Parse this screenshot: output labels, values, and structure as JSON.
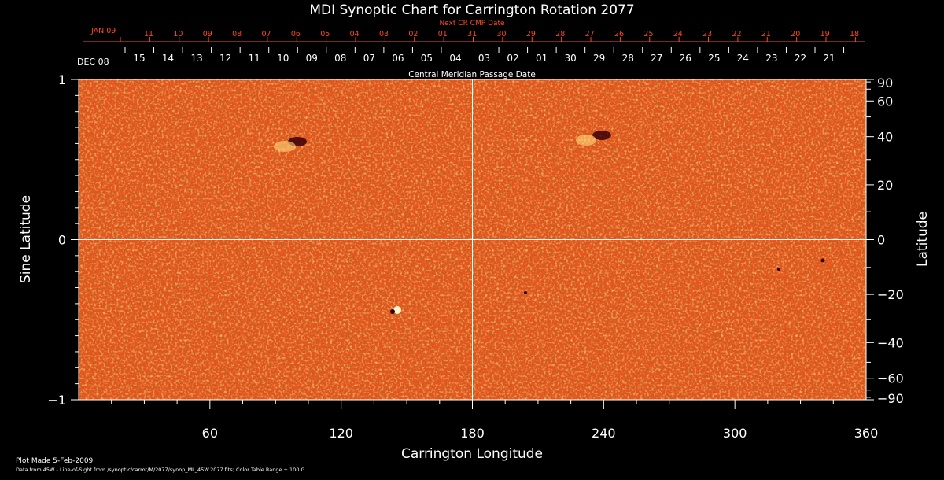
{
  "chart_data": {
    "type": "heatmap",
    "title": "MDI Synoptic Chart for Carrington Rotation 2077",
    "xlabel": "Carrington Longitude",
    "ylabel_left": "Sine Latitude",
    "ylabel_right": "Latitude",
    "xlim": [
      0,
      360
    ],
    "ylim": [
      -1,
      1
    ],
    "x_ticks": [
      60,
      120,
      180,
      240,
      300,
      360
    ],
    "left_ticks": [
      {
        "value": 1,
        "label": "1"
      },
      {
        "value": 0,
        "label": "0"
      },
      {
        "value": -1,
        "label": "−1"
      }
    ],
    "right_ticks": [
      90,
      60,
      40,
      20,
      0,
      -20,
      -40,
      -60,
      -90
    ],
    "next_cr_axis": {
      "title": "Next CR CMP Date",
      "start_label": "JAN 09",
      "dates": [
        "11",
        "10",
        "09",
        "08",
        "07",
        "06",
        "05",
        "04",
        "03",
        "02",
        "01",
        "31",
        "30",
        "29",
        "28",
        "27",
        "26",
        "25",
        "24",
        "23",
        "22",
        "21",
        "20",
        "19",
        "18"
      ]
    },
    "cmp_axis": {
      "title": "Central Meridian Passage Date",
      "start_label": "DEC 08",
      "dates": [
        "15",
        "14",
        "13",
        "12",
        "11",
        "10",
        "09",
        "08",
        "07",
        "06",
        "05",
        "04",
        "03",
        "02",
        "01",
        "30",
        "29",
        "28",
        "27",
        "26",
        "25",
        "24",
        "23",
        "22",
        "21"
      ]
    },
    "grid_lines": {
      "longitude": 180,
      "sine_latitude": 0
    },
    "colors": {
      "background": "#000000",
      "field": "#f2511a",
      "positive_polarity": "#fff0a0",
      "negative_polarity": "#3a0008",
      "axes": "#ffffff",
      "top_axis": "#ff4a20"
    }
  },
  "footer": {
    "plot_made": "Plot Made  5-Feb-2009",
    "data_source": "Data from 45W - Line-of-Sight from /synoptic/carrot/M/2077/synop_ML_45W.2077.fits; Color Table Range ± 100 G"
  }
}
